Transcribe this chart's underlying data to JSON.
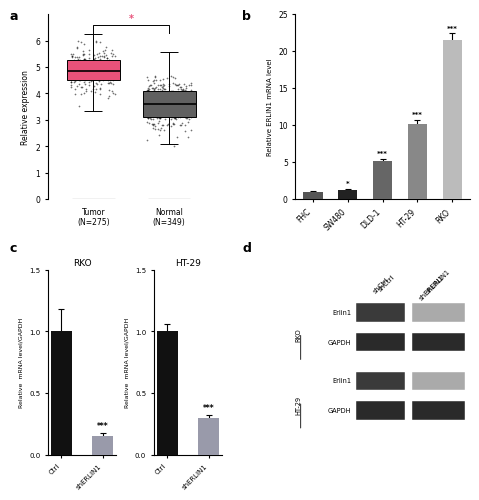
{
  "panel_a": {
    "tumor": {
      "median": 4.85,
      "q1": 4.5,
      "q3": 5.25,
      "whisker_low": 3.35,
      "whisker_high": 6.25,
      "color": "#E8527A",
      "n": 275
    },
    "normal": {
      "median": 3.6,
      "q1": 3.1,
      "q3": 4.1,
      "whisker_low": 2.1,
      "whisker_high": 5.55,
      "color": "#606060",
      "n": 349
    },
    "ylabel": "Relative expression",
    "ylim": [
      0,
      7
    ],
    "yticks": [
      0,
      1,
      2,
      3,
      4,
      5,
      6
    ],
    "sig_text": "*",
    "sig_color": "#E8527A"
  },
  "panel_b": {
    "categories": [
      "FHC",
      "SW480",
      "DLD-1",
      "HT-29",
      "RKO"
    ],
    "values": [
      1.0,
      1.3,
      5.1,
      10.2,
      21.5
    ],
    "colors": [
      "#555555",
      "#222222",
      "#666666",
      "#888888",
      "#bbbbbb"
    ],
    "errors": [
      0.12,
      0.15,
      0.35,
      0.55,
      0.9
    ],
    "sig_labels": [
      "",
      "*",
      "***",
      "***",
      "***"
    ],
    "ylabel": "Relative ERLIN1 mRNA level",
    "ylim": [
      0,
      25
    ],
    "yticks": [
      0,
      5,
      10,
      15,
      20,
      25
    ]
  },
  "panel_c_rko": {
    "categories": [
      "Ctrl",
      "shERLIN1"
    ],
    "values": [
      1.0,
      0.15
    ],
    "colors": [
      "#111111",
      "#999aaa"
    ],
    "errors": [
      0.18,
      0.025
    ],
    "sig_labels": [
      "",
      "***"
    ],
    "ylabel": "Relative  mRNA level/GAPDH",
    "title": "RKO",
    "ylim": [
      0,
      1.5
    ],
    "yticks": [
      0.0,
      0.5,
      1.0,
      1.5
    ]
  },
  "panel_c_ht29": {
    "categories": [
      "Ctrl",
      "shERLIN1"
    ],
    "values": [
      1.0,
      0.3
    ],
    "colors": [
      "#111111",
      "#999aaa"
    ],
    "errors": [
      0.06,
      0.025
    ],
    "sig_labels": [
      "",
      "***"
    ],
    "ylabel": "Relative  mRNA level/GAPDH",
    "title": "HT-29",
    "ylim": [
      0,
      1.5
    ],
    "yticks": [
      0.0,
      0.5,
      1.0,
      1.5
    ]
  },
  "bg_color": "#ffffff"
}
